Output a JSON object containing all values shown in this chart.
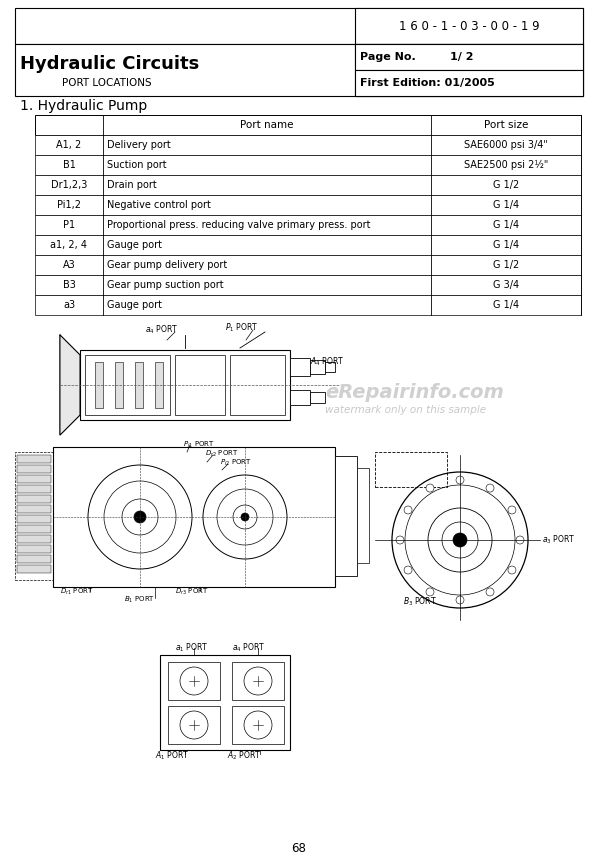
{
  "doc_number": "1 6 0 - 1 - 0 3 - 0 0 - 1 9",
  "title": "Hydraulic Circuits",
  "subtitle": "PORT LOCATIONS",
  "page_no_label": "Page No.",
  "page_no_val": "1/ 2",
  "edition": "First Edition: 01/2005",
  "section_title": "1. Hydraulic Pump",
  "table_headers": [
    "",
    "Port name",
    "Port size"
  ],
  "table_rows": [
    [
      "A1, 2",
      "Delivery port",
      "SAE6000 psi 3/4\""
    ],
    [
      "B1",
      "Suction port",
      "SAE2500 psi 2½\""
    ],
    [
      "Dr1,2,3",
      "Drain port",
      "G 1/2"
    ],
    [
      "Pi1,2",
      "Negative control port",
      "G 1/4"
    ],
    [
      "P1",
      "Proportional press. reducing valve primary press. port",
      "G 1/4"
    ],
    [
      "a1, 2, 4",
      "Gauge port",
      "G 1/4"
    ],
    [
      "A3",
      "Gear pump delivery port",
      "G 1/2"
    ],
    [
      "B3",
      "Gear pump suction port",
      "G 3/4"
    ],
    [
      "a3",
      "Gauge port",
      "G 1/4"
    ]
  ],
  "watermark_text": "eRepairinfo.com",
  "watermark_sub": "watermark only on this sample",
  "page_number": "68",
  "bg_color": "#ffffff"
}
